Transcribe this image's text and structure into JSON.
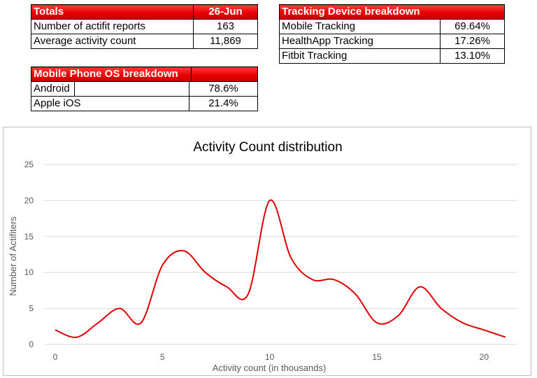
{
  "totals": {
    "header_label": "Totals",
    "header_date": "26-Jun",
    "rows": [
      {
        "label": "Number of actifit reports",
        "value": "163"
      },
      {
        "label": "Average activity count",
        "value": "11,869"
      }
    ]
  },
  "os_breakdown": {
    "title": "Mobile Phone OS breakdown",
    "rows": [
      {
        "label": "Android",
        "value": "78.6%"
      },
      {
        "label": "Apple iOS",
        "value": "21.4%"
      }
    ]
  },
  "device_breakdown": {
    "title": "Tracking Device breakdown",
    "rows": [
      {
        "label": "Mobile Tracking",
        "value": "69.64%"
      },
      {
        "label": "HealthApp Tracking",
        "value": "17.26%"
      },
      {
        "label": "Fitbit Tracking",
        "value": "13.10%"
      }
    ]
  },
  "colors": {
    "header_red": "#e80000",
    "line_red": "#e00000",
    "grid": "#d9d9d9"
  },
  "chart_data": {
    "type": "line",
    "title": "Activity Count distribution",
    "xlabel": "Activity count (in thousands)",
    "ylabel": "Number of Actifiters",
    "xlim": [
      0,
      21
    ],
    "ylim": [
      0,
      25
    ],
    "x_ticks": [
      0,
      5,
      10,
      15,
      20
    ],
    "y_ticks": [
      0,
      5,
      10,
      15,
      20,
      25
    ],
    "grid": true,
    "smooth": true,
    "series": [
      {
        "x": [
          0,
          1,
          2,
          3,
          4,
          5,
          6,
          7,
          8,
          9,
          10,
          11,
          12,
          13,
          14,
          15,
          16,
          17,
          18,
          19,
          20,
          21
        ],
        "y": [
          2,
          1,
          3,
          5,
          3,
          11,
          13,
          10,
          8,
          7,
          20,
          12,
          9,
          9,
          7,
          3,
          4,
          8,
          5,
          3,
          2,
          1
        ]
      }
    ]
  }
}
